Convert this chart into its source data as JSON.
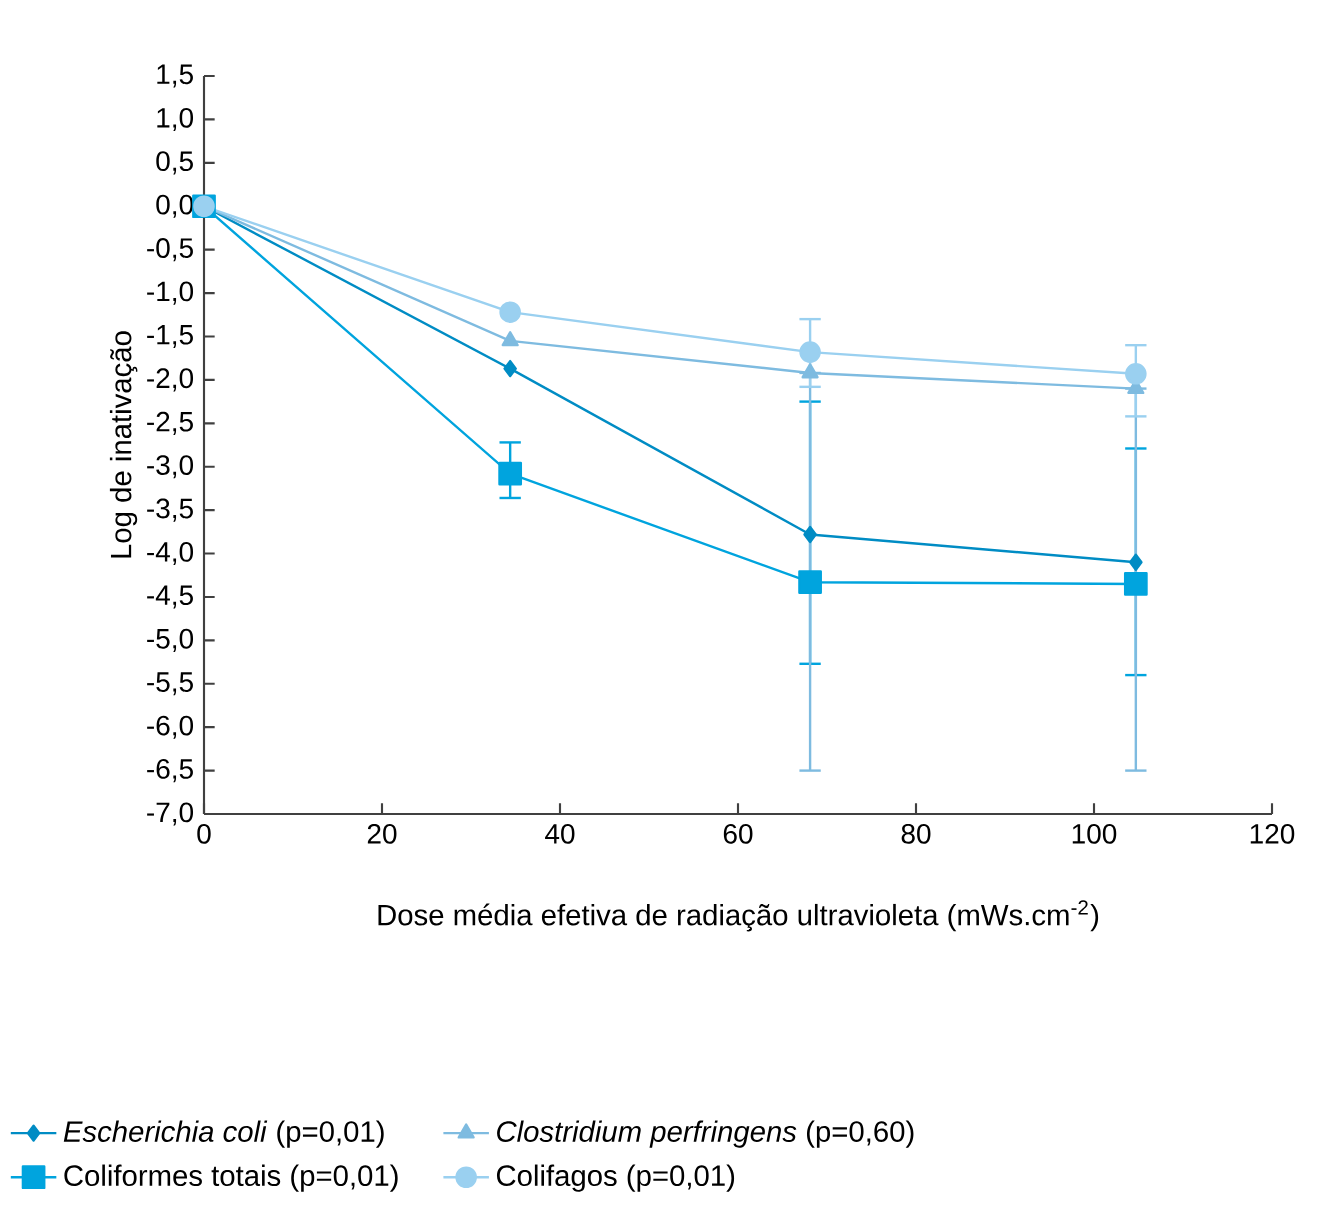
{
  "chart_data": {
    "type": "line",
    "xlabel": "Dose média efetiva de radiação ultravioleta (mWs.cm$^{-2}$)",
    "ylabel": "Log de inativação",
    "xlim": [
      0,
      120
    ],
    "xticks": [
      0,
      20,
      40,
      60,
      80,
      100,
      120
    ],
    "ylim": [
      -7,
      1.5
    ],
    "yticks": [
      {
        "value": 1.5,
        "label": "1,5"
      },
      {
        "value": 1,
        "label": "1,0"
      },
      {
        "value": 0.5,
        "label": "0,5"
      },
      {
        "value": 0,
        "label": "0,0"
      },
      {
        "value": -0.5,
        "label": "-0,5"
      },
      {
        "value": -1,
        "label": "-1,0"
      },
      {
        "value": -1.5,
        "label": "-1,5"
      },
      {
        "value": -2,
        "label": "-2,0"
      },
      {
        "value": -2.5,
        "label": "-2,5"
      },
      {
        "value": -3,
        "label": "-3,0"
      },
      {
        "value": -3.5,
        "label": "-3,5"
      },
      {
        "value": -4,
        "label": "-4,0"
      },
      {
        "value": -4.5,
        "label": "-4,5"
      },
      {
        "value": -5,
        "label": "-5,0"
      },
      {
        "value": -5.5,
        "label": "-5,5"
      },
      {
        "value": -6,
        "label": "-6,0"
      },
      {
        "value": -6.5,
        "label": "-6,5"
      },
      {
        "value": -7,
        "label": "-7,0"
      }
    ],
    "grid": false,
    "legend": "bottom",
    "x": [
      0,
      34.4,
      68.1,
      104.7
    ],
    "series": [
      {
        "name": "*Escherichia coli* (p=0,01)",
        "color": "#008cc4",
        "marker": "diamond",
        "values": [
          0,
          -1.87,
          -3.78,
          -4.1
        ]
      },
      {
        "name": "Coliformes totais (p=0,01)",
        "color": "#00a4de",
        "marker": "square",
        "values": [
          0,
          -3.08,
          -4.33,
          -4.35
        ],
        "errors": [
          null,
          [
            -3.36,
            -2.72
          ],
          [
            -5.27,
            -2.25
          ],
          [
            -5.4,
            -2.79
          ]
        ]
      },
      {
        "name": "*Clostridium perfringens* (p=0,60)",
        "color": "#7ebbe0",
        "marker": "triangle",
        "values": [
          0,
          -1.55,
          -1.92,
          -2.1
        ],
        "errors": [
          null,
          null,
          [
            -6.5,
            -1.92
          ],
          [
            -6.5,
            -2.1
          ]
        ]
      },
      {
        "name": "Colifagos (p=0,01)",
        "color": "#9ad0f0",
        "marker": "circle",
        "values": [
          0,
          -1.22,
          -1.68,
          -1.93
        ],
        "errors": [
          null,
          null,
          [
            -2.08,
            -1.3
          ],
          [
            -2.42,
            -1.6
          ]
        ]
      }
    ]
  }
}
